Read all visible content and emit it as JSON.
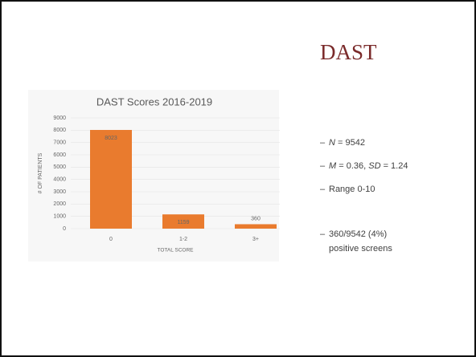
{
  "slide": {
    "title": "DAST",
    "bullets": [
      [
        {
          "text": "N",
          "italic": true
        },
        {
          "text": " = 9542"
        }
      ],
      [
        {
          "text": "M",
          "italic": true
        },
        {
          "text": " = 0.36, "
        },
        {
          "text": "SD",
          "italic": true
        },
        {
          "text": " = 1.24"
        }
      ],
      [
        {
          "text": "Range 0-10"
        }
      ],
      [
        {
          "text": "360/9542 (4%)"
        }
      ],
      [
        {
          "text": "positive screens"
        }
      ]
    ]
  },
  "chart_data": {
    "type": "bar",
    "title": "DAST Scores 2016-2019",
    "categories": [
      "0",
      "1-2",
      "3+"
    ],
    "values": [
      8023,
      1159,
      360
    ],
    "color": "#e97b2e",
    "xlabel": "TOTAL SCORE",
    "ylabel": "# OF PATIENTS",
    "ylim": [
      0,
      9000
    ],
    "yticks": [
      0,
      1000,
      2000,
      3000,
      4000,
      5000,
      6000,
      7000,
      8000,
      9000
    ],
    "grid": true
  }
}
